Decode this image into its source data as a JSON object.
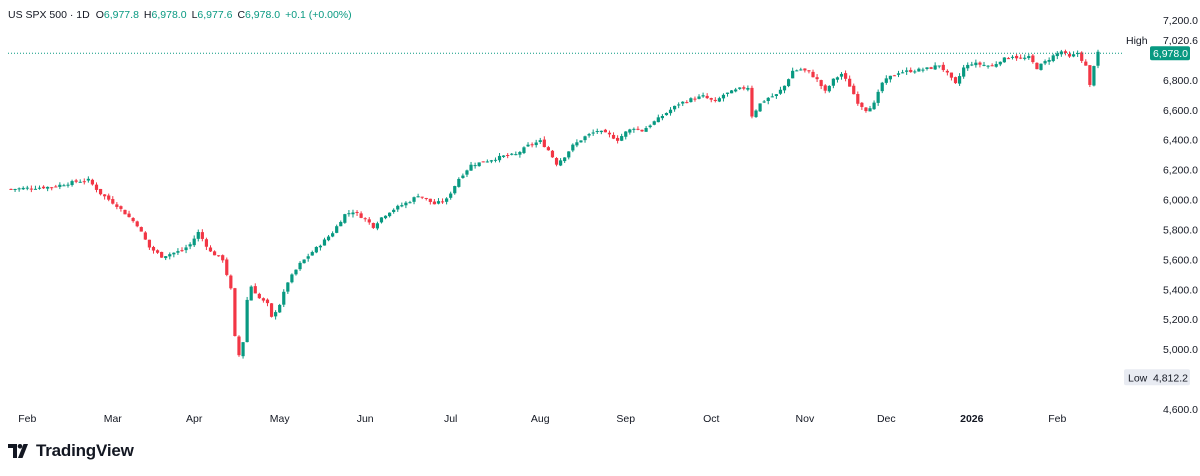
{
  "header": {
    "symbol": "US SPX 500 · 1D",
    "open_label": "O",
    "open": "6,977.8",
    "high_label": "H",
    "high": "6,978.0",
    "low_label": "L",
    "low": "6,977.6",
    "close_label": "C",
    "close": "6,978.0",
    "change": "+0.1 (+0.00%)"
  },
  "brand": {
    "name": "TradingView"
  },
  "colors": {
    "up": "#089981",
    "down": "#f23645",
    "text": "#131722",
    "grid": "#ffffff",
    "last_price_bg": "#089981",
    "marker_bg": "#e8ebf2"
  },
  "chart_data": {
    "type": "candlestick",
    "title": "US SPX 500 · 1D",
    "ylim": [
      4500,
      7260
    ],
    "y_ticks": [
      "7,200.0",
      "6,800.0",
      "6,600.0",
      "6,400.0",
      "6,200.0",
      "6,000.0",
      "5,800.0",
      "5,600.0",
      "5,400.0",
      "5,200.0",
      "5,000.0",
      "4,600.0"
    ],
    "y_tick_values": [
      7200,
      6800,
      6600,
      6400,
      6200,
      6000,
      5800,
      5600,
      5400,
      5200,
      5000,
      4600
    ],
    "x_ticks": [
      "Feb",
      "Mar",
      "Apr",
      "May",
      "Jun",
      "Jul",
      "Aug",
      "Sep",
      "Oct",
      "Nov",
      "Dec",
      "2026",
      "Feb"
    ],
    "x_tick_bold": [
      false,
      false,
      false,
      false,
      false,
      false,
      false,
      false,
      false,
      false,
      false,
      true,
      false
    ],
    "markers": {
      "high_label": "High",
      "high_value": "7,020.6",
      "high": 7020.6,
      "last_value": "6,978.0",
      "last": 6978.0,
      "low_label": "Low",
      "low_value": "4,812.2",
      "low": 4812.2
    },
    "anchors": [
      [
        0,
        6070
      ],
      [
        10,
        6085
      ],
      [
        16,
        6120
      ],
      [
        19,
        6130
      ],
      [
        22,
        6040
      ],
      [
        26,
        5960
      ],
      [
        31,
        5830
      ],
      [
        34,
        5680
      ],
      [
        37,
        5620
      ],
      [
        42,
        5660
      ],
      [
        44,
        5700
      ],
      [
        46,
        5780
      ],
      [
        49,
        5650
      ],
      [
        52,
        5600
      ],
      [
        54,
        5400
      ],
      [
        55,
        5080
      ],
      [
        56,
        4960
      ],
      [
        57,
        5050
      ],
      [
        58,
        5330
      ],
      [
        59,
        5420
      ],
      [
        61,
        5340
      ],
      [
        63,
        5300
      ],
      [
        64,
        5210
      ],
      [
        66,
        5300
      ],
      [
        68,
        5450
      ],
      [
        71,
        5570
      ],
      [
        74,
        5650
      ],
      [
        76,
        5700
      ],
      [
        79,
        5780
      ],
      [
        82,
        5900
      ],
      [
        84,
        5920
      ],
      [
        87,
        5870
      ],
      [
        89,
        5820
      ],
      [
        91,
        5880
      ],
      [
        93,
        5920
      ],
      [
        95,
        5950
      ],
      [
        98,
        5990
      ],
      [
        100,
        6030
      ],
      [
        102,
        6000
      ],
      [
        104,
        5970
      ],
      [
        107,
        6000
      ],
      [
        110,
        6140
      ],
      [
        113,
        6230
      ],
      [
        117,
        6260
      ],
      [
        121,
        6290
      ],
      [
        124,
        6300
      ],
      [
        127,
        6360
      ],
      [
        130,
        6390
      ],
      [
        132,
        6330
      ],
      [
        134,
        6240
      ],
      [
        136,
        6290
      ],
      [
        138,
        6360
      ],
      [
        141,
        6420
      ],
      [
        144,
        6460
      ],
      [
        147,
        6430
      ],
      [
        149,
        6400
      ],
      [
        151,
        6450
      ],
      [
        153,
        6480
      ],
      [
        155,
        6460
      ],
      [
        158,
        6520
      ],
      [
        161,
        6580
      ],
      [
        164,
        6640
      ],
      [
        167,
        6670
      ],
      [
        170,
        6690
      ],
      [
        173,
        6650
      ],
      [
        175,
        6700
      ],
      [
        177,
        6720
      ],
      [
        179,
        6740
      ],
      [
        181,
        6750
      ],
      [
        182,
        6560
      ],
      [
        184,
        6640
      ],
      [
        186,
        6680
      ],
      [
        188,
        6700
      ],
      [
        190,
        6760
      ],
      [
        192,
        6860
      ],
      [
        194,
        6870
      ],
      [
        196,
        6850
      ],
      [
        198,
        6800
      ],
      [
        200,
        6720
      ],
      [
        202,
        6800
      ],
      [
        204,
        6840
      ],
      [
        206,
        6760
      ],
      [
        208,
        6650
      ],
      [
        210,
        6600
      ],
      [
        212,
        6640
      ],
      [
        214,
        6780
      ],
      [
        216,
        6820
      ],
      [
        218,
        6850
      ],
      [
        221,
        6860
      ],
      [
        224,
        6870
      ],
      [
        226,
        6880
      ],
      [
        228,
        6900
      ],
      [
        230,
        6840
      ],
      [
        232,
        6770
      ],
      [
        234,
        6880
      ],
      [
        236,
        6910
      ],
      [
        239,
        6900
      ],
      [
        241,
        6890
      ],
      [
        243,
        6930
      ],
      [
        246,
        6960
      ],
      [
        248,
        6940
      ],
      [
        250,
        6950
      ],
      [
        252,
        6880
      ],
      [
        254,
        6920
      ],
      [
        256,
        6960
      ],
      [
        258,
        6990
      ],
      [
        260,
        6950
      ],
      [
        262,
        6980
      ],
      [
        264,
        6890
      ],
      [
        265,
        6760
      ],
      [
        266,
        6900
      ],
      [
        267,
        6978
      ]
    ],
    "months": [
      {
        "label": "Feb",
        "day": 4
      },
      {
        "label": "Mar",
        "day": 25
      },
      {
        "label": "Apr",
        "day": 45
      },
      {
        "label": "May",
        "day": 66
      },
      {
        "label": "Jun",
        "day": 87
      },
      {
        "label": "Jul",
        "day": 108
      },
      {
        "label": "Aug",
        "day": 130
      },
      {
        "label": "Sep",
        "day": 151
      },
      {
        "label": "Oct",
        "day": 172
      },
      {
        "label": "Nov",
        "day": 195
      },
      {
        "label": "Dec",
        "day": 215
      },
      {
        "label": "2026",
        "day": 236
      },
      {
        "label": "Feb",
        "day": 257
      }
    ],
    "total_days": 268
  }
}
